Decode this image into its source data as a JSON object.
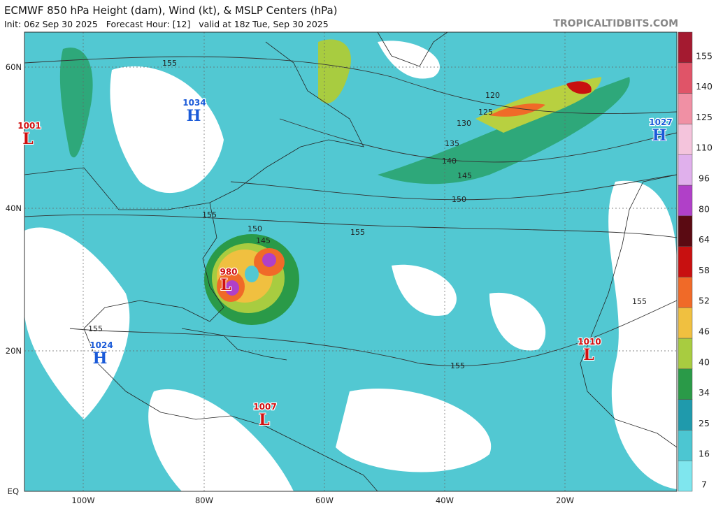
{
  "header": {
    "title": "ECMWF 850 hPa Height (dam), Wind (kt), & MSLP Centers (hPa)",
    "subtitle": "Init: 06z Sep 30 2025   Forecast Hour: [12]   valid at 18z Tue, Sep 30 2025",
    "site": "TROPICALTIDBITS.COM"
  },
  "map": {
    "lat_labels": [
      "60N",
      "40N",
      "20N",
      "EQ"
    ],
    "lon_labels": [
      "100W",
      "80W",
      "60W",
      "40W",
      "20W"
    ],
    "contour_labels": [
      155,
      120,
      125,
      130,
      135,
      140,
      145,
      150,
      155,
      155,
      150,
      145,
      155,
      155,
      155
    ],
    "centers": [
      {
        "value": "1001",
        "letter": "L"
      },
      {
        "value": "1034",
        "letter": "H"
      },
      {
        "value": "1027",
        "letter": "H"
      },
      {
        "value": "1024",
        "letter": "H"
      },
      {
        "value": "1010",
        "letter": "L"
      },
      {
        "value": "1007",
        "letter": "L"
      },
      {
        "value": "980",
        "letter": "L"
      }
    ]
  },
  "colorbar": {
    "ticks": [
      7,
      16,
      25,
      34,
      40,
      46,
      52,
      58,
      64,
      80,
      96,
      110,
      125,
      140,
      155
    ],
    "colors": [
      "#7fe6ee",
      "#4cc6d2",
      "#1f9aac",
      "#2a9a48",
      "#a8cc40",
      "#f0c040",
      "#f06a28",
      "#c81010",
      "#5a0a12",
      "#b040c8",
      "#e0b0ec",
      "#f4c4dc",
      "#f090a4",
      "#e05468",
      "#a41a30"
    ]
  }
}
